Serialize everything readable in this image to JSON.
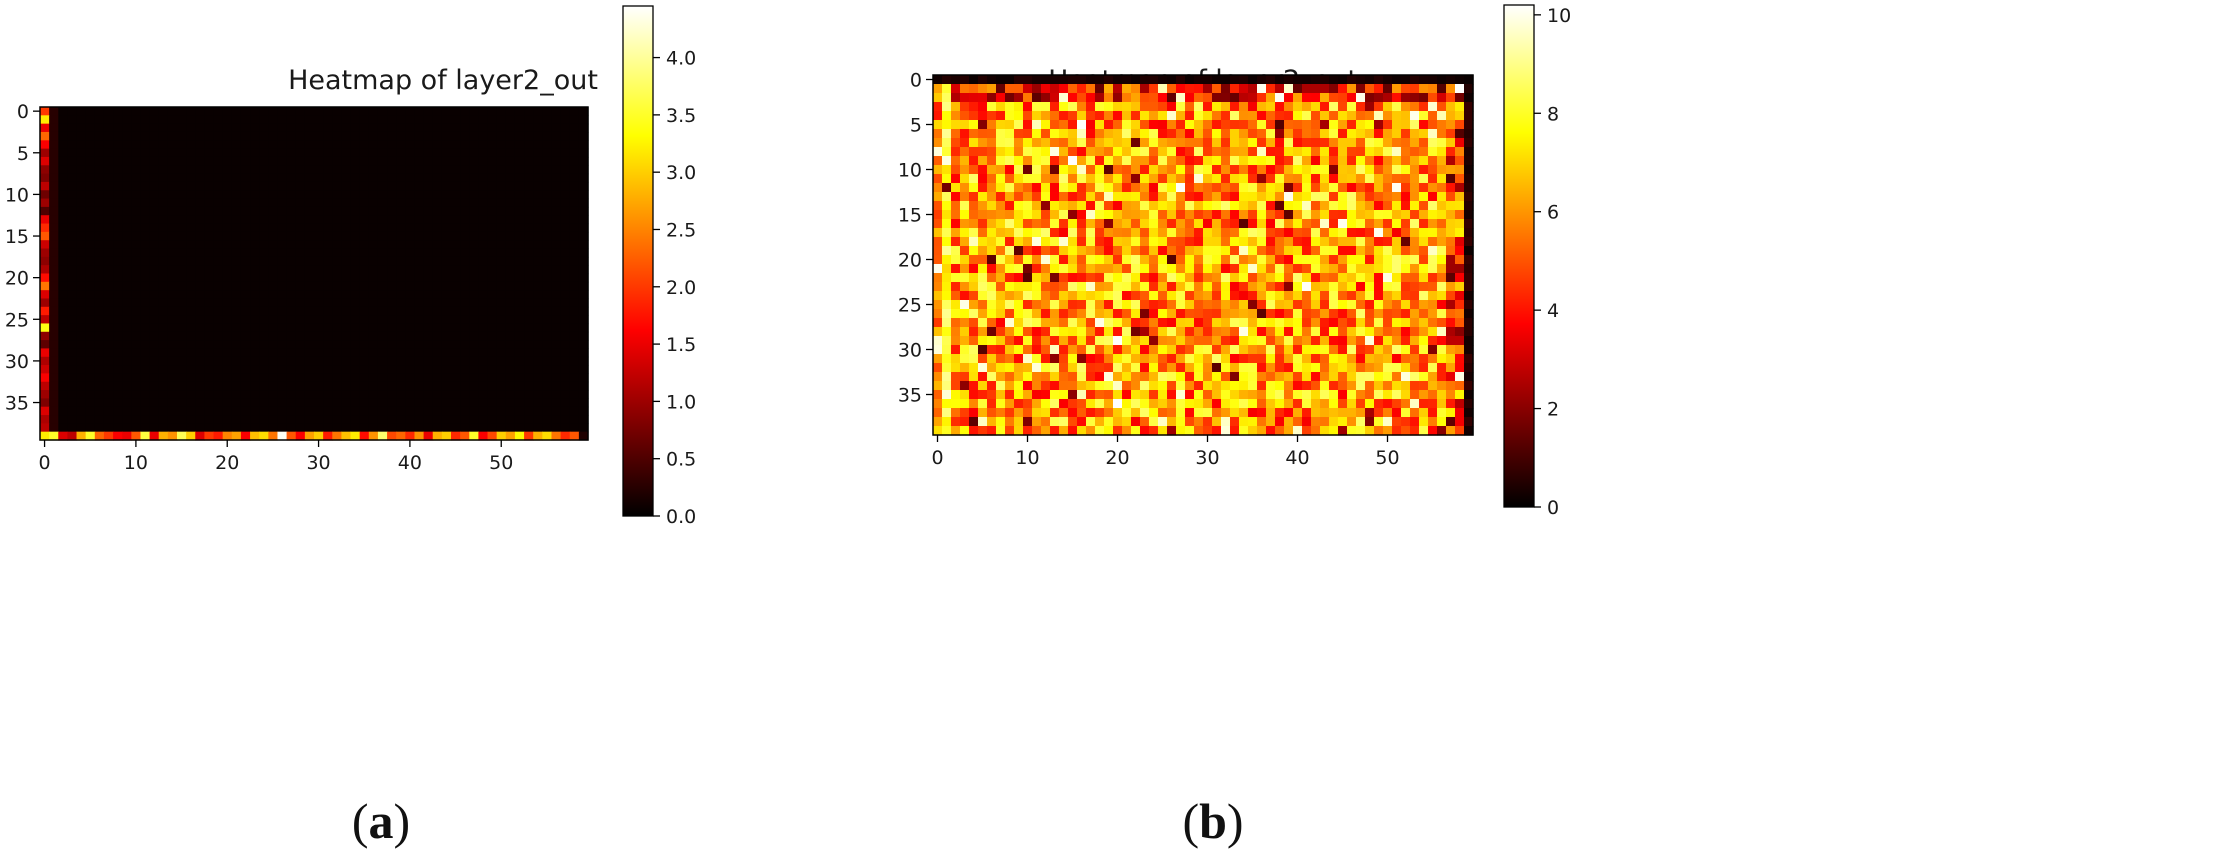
{
  "chart_data": [
    {
      "type": "heatmap",
      "panel_label": "(a)",
      "panel_letter": "a",
      "title": "Heatmap of layer2_out",
      "rows": 40,
      "cols": 60,
      "colormap": "hot",
      "x_ticks": [
        0,
        10,
        20,
        30,
        40,
        50
      ],
      "y_ticks": [
        0,
        5,
        10,
        15,
        20,
        25,
        30,
        35
      ],
      "colorbar": {
        "min": 0.0,
        "max": 4.45,
        "ticks": [
          "0.0",
          "0.5",
          "1.0",
          "1.5",
          "2.0",
          "2.5",
          "3.0",
          "3.5",
          "4.0"
        ]
      },
      "pattern": "Near-zero everywhere except column 0 (values up to ~3.5) and row 39 (values ~1.5–4.4)",
      "left_column_values": [
        2.0,
        3.2,
        1.5,
        2.3,
        1.6,
        1.0,
        1.4,
        0.9,
        0.8,
        1.2,
        0.7,
        1.0,
        0.5,
        1.5,
        1.9,
        2.2,
        1.3,
        1.0,
        0.9,
        1.1,
        1.7,
        2.4,
        1.4,
        1.0,
        1.8,
        1.2,
        3.4,
        0.9,
        0.6,
        1.5,
        1.1,
        1.3,
        1.6,
        1.2,
        1.0,
        0.8,
        1.4,
        1.1,
        1.2,
        3.2
      ],
      "bottom_row_values": [
        3.2,
        3.5,
        1.4,
        1.2,
        2.8,
        3.5,
        2.3,
        2.0,
        1.6,
        1.5,
        2.2,
        3.6,
        1.5,
        2.8,
        2.6,
        3.7,
        3.0,
        1.4,
        2.0,
        1.8,
        2.5,
        2.7,
        1.6,
        2.9,
        3.1,
        2.4,
        4.4,
        2.2,
        1.6,
        2.7,
        3.0,
        1.8,
        2.4,
        2.9,
        3.2,
        1.7,
        2.6,
        3.8,
        2.1,
        2.3,
        1.9,
        2.6,
        1.5,
        2.8,
        3.0,
        1.9,
        2.2,
        3.5,
        1.6,
        2.1,
        3.0,
        2.7,
        3.3,
        2.0,
        2.8,
        3.1,
        2.4,
        1.9,
        2.2,
        0.2
      ]
    },
    {
      "type": "heatmap",
      "panel_label": "(b)",
      "panel_letter": "b",
      "title": "Heatmap of layer2_out",
      "rows": 40,
      "cols": 60,
      "colormap": "hot",
      "x_ticks": [
        0,
        10,
        20,
        30,
        40,
        50
      ],
      "y_ticks": [
        0,
        5,
        10,
        15,
        20,
        25,
        30,
        35
      ],
      "colorbar": {
        "min": 0,
        "max": 10.2,
        "ticks": [
          "0",
          "2",
          "4",
          "6",
          "8",
          "10"
        ]
      },
      "pattern": "Dense field mostly 4–9 with scattered highs near 10; row 0 and last column near 0; rows 1–2 darker",
      "seed": 7
    }
  ]
}
